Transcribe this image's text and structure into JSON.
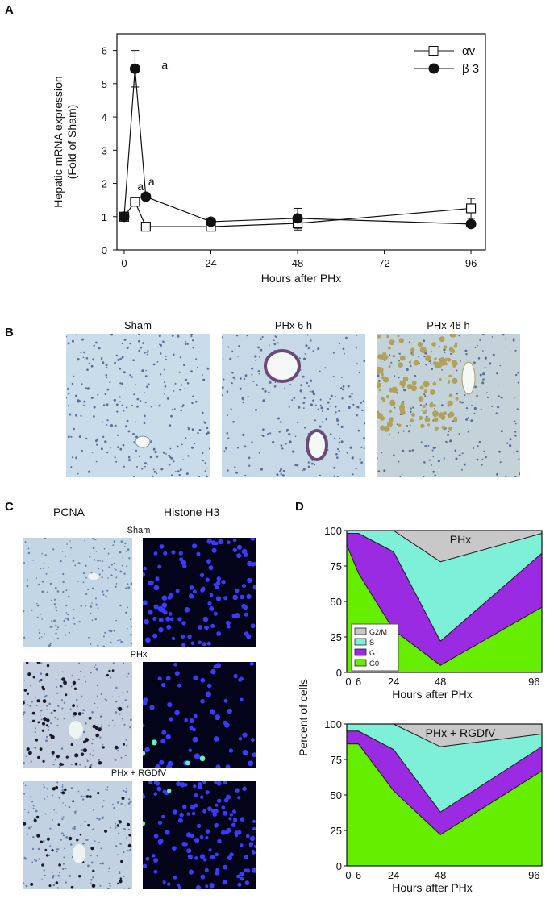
{
  "panels": {
    "A": "A",
    "B": "B",
    "C": "C",
    "D": "D"
  },
  "panelA": {
    "ylabel_line1": "Hepatic mRNA expression",
    "ylabel_line2": "(Fold of Sham)",
    "xlabel": "Hours after PHx",
    "annotation": "a"
  },
  "panelB": {
    "labels": [
      "Sham",
      "PHx 6 h",
      "PHx 48 h"
    ]
  },
  "panelC": {
    "col_labels": [
      "PCNA",
      "Histone H3"
    ],
    "row_labels": [
      "Sham",
      "PHx",
      "PHx + RGDfV"
    ]
  },
  "panelD": {
    "ylabel": "Percent of cells"
  },
  "chart_data": [
    {
      "type": "line",
      "panel": "A",
      "xlabel": "Hours after PHx",
      "ylabel": "Hepatic mRNA expression (Fold of Sham)",
      "xticks": [
        0,
        24,
        48,
        72,
        96
      ],
      "yticks": [
        0,
        1,
        2,
        3,
        4,
        5,
        6
      ],
      "xlim": [
        -2,
        100
      ],
      "ylim": [
        0,
        6.5
      ],
      "legend_position": "top-right",
      "series": [
        {
          "name": "αv",
          "marker": "open-square",
          "x": [
            0,
            3,
            6,
            24,
            48,
            96
          ],
          "y": [
            1.0,
            1.45,
            0.7,
            0.7,
            0.8,
            1.25
          ],
          "err": [
            0.05,
            0.1,
            0.05,
            0.05,
            0.2,
            0.3
          ]
        },
        {
          "name": "β 3",
          "marker": "filled-circle",
          "x": [
            0,
            3,
            6,
            24,
            48,
            96
          ],
          "y": [
            1.0,
            5.45,
            1.6,
            0.85,
            0.95,
            0.78
          ],
          "err": [
            0.05,
            0.55,
            0.05,
            0.05,
            0.3,
            0.05
          ]
        }
      ],
      "annotations": [
        {
          "text": "a",
          "x": 3,
          "y": 5.45
        },
        {
          "text": "a",
          "x": 3,
          "y": 1.45
        },
        {
          "text": "a",
          "x": 6,
          "y": 1.6
        }
      ]
    },
    {
      "type": "area",
      "panel": "D",
      "title": "PHx",
      "xlabel": "Hours after PHx",
      "ylabel": "Percent of cells",
      "xticks": [
        0,
        6,
        24,
        48,
        96
      ],
      "yticks": [
        0,
        25,
        50,
        75,
        100
      ],
      "xlim": [
        0,
        100
      ],
      "ylim": [
        0,
        100
      ],
      "legend_position": "bottom-left",
      "x": [
        0,
        6,
        24,
        48,
        100
      ],
      "series": [
        {
          "name": "G0",
          "color": "#66ee00",
          "values": [
            90,
            70,
            30,
            5,
            46
          ]
        },
        {
          "name": "G1",
          "color": "#9a2be2",
          "values": [
            8,
            28,
            55,
            17,
            38
          ]
        },
        {
          "name": "S",
          "color": "#7ff0d8",
          "values": [
            2,
            2,
            15,
            56,
            14
          ]
        },
        {
          "name": "G2/M",
          "color": "#c8c8c8",
          "values": [
            0,
            0,
            0,
            22,
            2
          ]
        }
      ]
    },
    {
      "type": "area",
      "panel": "D",
      "title": "PHx + RGDfV",
      "xlabel": "Hours after PHx",
      "ylabel": "Percent of cells",
      "xticks": [
        0,
        6,
        24,
        48,
        96
      ],
      "yticks": [
        0,
        25,
        50,
        75,
        100
      ],
      "xlim": [
        0,
        100
      ],
      "ylim": [
        0,
        100
      ],
      "x": [
        0,
        6,
        24,
        48,
        100
      ],
      "series": [
        {
          "name": "G0",
          "color": "#66ee00",
          "values": [
            86,
            86,
            53,
            22,
            67
          ]
        },
        {
          "name": "G1",
          "color": "#9a2be2",
          "values": [
            9,
            9,
            29,
            16,
            17
          ]
        },
        {
          "name": "S",
          "color": "#7ff0d8",
          "values": [
            5,
            5,
            18,
            46,
            9
          ]
        },
        {
          "name": "G2/M",
          "color": "#c8c8c8",
          "values": [
            0,
            0,
            0,
            16,
            7
          ]
        }
      ]
    }
  ]
}
